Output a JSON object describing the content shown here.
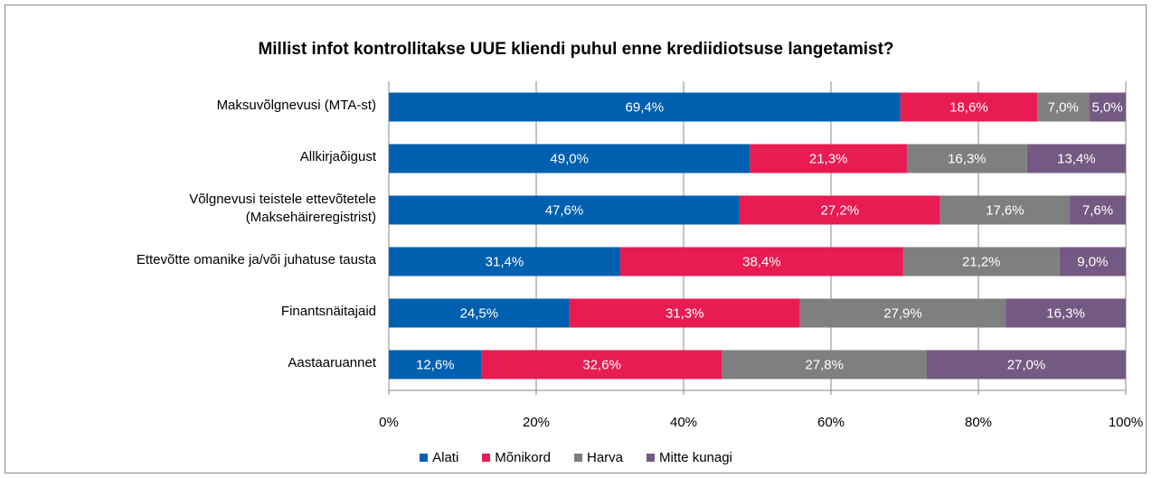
{
  "chart_data": {
    "type": "stacked-barh",
    "title": "Millist infot kontrollitakse UUE kliendi puhul enne krediidiotsuse langetamist?",
    "categories": [
      "Maksuvõlgnevusi (MTA-st)",
      "Allkirjaõigust",
      "Võlgnevusi teistele ettevõtetele\n(Maksehäireregistrist)",
      "Ettevõtte omanike ja/või juhatuse tausta",
      "Finantsnäitajaid",
      "Aastaaruannet"
    ],
    "series": [
      {
        "name": "Alati",
        "color": "#0060b0",
        "values": [
          69.4,
          49.0,
          47.6,
          31.4,
          24.5,
          12.6
        ],
        "value_labels": [
          "69,4%",
          "49,0%",
          "47,6%",
          "31,4%",
          "24,5%",
          "12,6%"
        ]
      },
      {
        "name": "Mõnikord",
        "color": "#e81c52",
        "values": [
          18.6,
          21.3,
          27.2,
          38.4,
          31.3,
          32.6
        ],
        "value_labels": [
          "18,6%",
          "21,3%",
          "27,2%",
          "38,4%",
          "31,3%",
          "32,6%"
        ]
      },
      {
        "name": "Harva",
        "color": "#7f7f7f",
        "values": [
          7.0,
          16.3,
          17.6,
          21.2,
          27.9,
          27.8
        ],
        "value_labels": [
          "7,0%",
          "16,3%",
          "17,6%",
          "21,2%",
          "27,9%",
          "27,8%"
        ]
      },
      {
        "name": "Mitte kunagi",
        "color": "#745a82",
        "values": [
          5.0,
          13.4,
          7.6,
          9.0,
          16.3,
          27.0
        ],
        "value_labels": [
          "5,0%",
          "13,4%",
          "7,6%",
          "9,0%",
          "16,3%",
          "27,0%"
        ]
      }
    ],
    "xlim": [
      0,
      100
    ],
    "xticks": [
      {
        "value": 0,
        "label": "0%"
      },
      {
        "value": 20,
        "label": "20%"
      },
      {
        "value": 40,
        "label": "40%"
      },
      {
        "value": 60,
        "label": "60%"
      },
      {
        "value": 80,
        "label": "80%"
      },
      {
        "value": 100,
        "label": "100%"
      }
    ],
    "grid": true,
    "legend": "bottom"
  }
}
